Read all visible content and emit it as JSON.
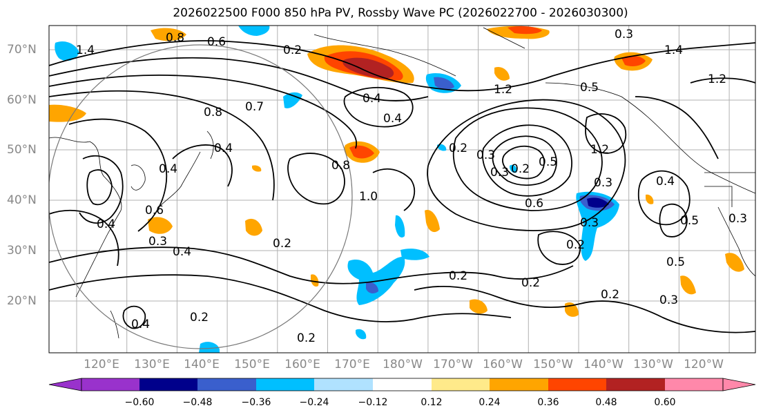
{
  "title": "2026022500 F000 850 hPa PV, Rossby Wave PC (2026022700 - 2026030300)",
  "lat_labels": [
    "70°N",
    "60°N",
    "50°N",
    "40°N",
    "30°N",
    "20°N"
  ],
  "lon_labels": [
    "120°E",
    "130°E",
    "140°E",
    "150°E",
    "160°E",
    "170°E",
    "180°W",
    "170°W",
    "160°W",
    "150°W",
    "140°W",
    "130°W",
    "120°W"
  ],
  "colorbar": {
    "tick_labels": [
      "−0.60",
      "−0.48",
      "−0.36",
      "−0.24",
      "−0.12",
      "0.12",
      "0.24",
      "0.36",
      "0.48",
      "0.60"
    ],
    "colors": [
      "#9932cc",
      "#00008b",
      "#3a5fcd",
      "#00bfff",
      "#b0e2ff",
      "#ffffff",
      "#ffea8a",
      "#ffa500",
      "#ff4500",
      "#b22222",
      "#ff88aa"
    ]
  },
  "contour_labels": [
    "1.4",
    "0.8",
    "0.6",
    "0.2",
    "0.7",
    "1.4",
    "1.2",
    "0.4",
    "0.3",
    "1.2",
    "0.4",
    "0.5",
    "0.4",
    "1.2",
    "0.3",
    "0.2",
    "0.5",
    "0.8",
    "0.3",
    "0.4",
    "0.6",
    "0.3",
    "0.2",
    "0.8",
    "1.0",
    "0.4",
    "0.5",
    "0.3",
    "0.4",
    "0.2",
    "0.3",
    "0.2",
    "0.6",
    "0.3",
    "0.2",
    "0.2",
    "0.2",
    "0.4",
    "0.2",
    "0.2",
    "0.5",
    "0.3",
    "0.4"
  ]
}
